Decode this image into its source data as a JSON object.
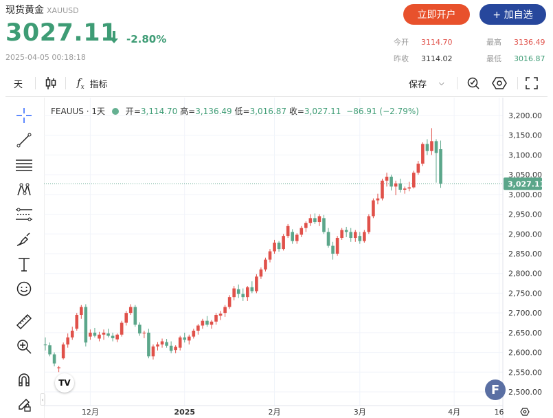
{
  "header": {
    "title": "现货黄金",
    "symbol": "XAUUSD",
    "price": "3027.11",
    "change": "-2.80%",
    "timestamp": "2025-04-05 00:18:18",
    "open_account_label": "立即开户",
    "add_watchlist_label": "+ 加自选"
  },
  "stats": {
    "open_label": "今开",
    "open": "3114.70",
    "high_label": "最高",
    "high": "3136.49",
    "prev_label": "昨收",
    "prev": "3114.02",
    "low_label": "最低",
    "low": "3016.87"
  },
  "toolbar": {
    "interval": "天",
    "indicators": "指标",
    "save": "保存"
  },
  "legend": {
    "symbol": "FEAUUS · 1天",
    "open_label": "开",
    "open": "3,114.70",
    "high_label": "高",
    "high": "3,136.49",
    "low_label": "低",
    "low": "3,016.87",
    "close_label": "收",
    "close": "3,027.11",
    "change": "−86.91 (−2.79%)"
  },
  "colors": {
    "up": "#e0514a",
    "down": "#5ba68a",
    "accent_orange": "#e8512c",
    "accent_blue": "#27479c"
  },
  "icons": [
    "crosshair-icon",
    "trendline-icon",
    "fib-icon",
    "pattern-icon",
    "forecast-icon",
    "brush-icon",
    "text-icon",
    "emoji-icon",
    "ruler-icon",
    "zoom-icon",
    "magnet-icon",
    "lock-pencil-icon",
    "candle-icon",
    "fx-icon",
    "alert-icon",
    "settings-icon",
    "fullscreen-icon"
  ],
  "chart_data": {
    "type": "candlestick",
    "price_axis": [
      "3,200.00",
      "3,150.00",
      "3,100.00",
      "3,050.00",
      "3,000.00",
      "2,950.00",
      "2,900.00",
      "2,850.00",
      "2,800.00",
      "2,750.00",
      "2,700.00",
      "2,650.00",
      "2,600.00",
      "2,550.00",
      "2,500.00"
    ],
    "price_ticks": [
      3200,
      3150,
      3100,
      3050,
      3000,
      2950,
      2900,
      2850,
      2800,
      2750,
      2700,
      2650,
      2600,
      2550,
      2500
    ],
    "ylim": [
      2480,
      3230
    ],
    "time_axis": [
      {
        "label": "12月",
        "index": 10
      },
      {
        "label": "2025",
        "index": 31
      },
      {
        "label": "2月",
        "index": 51
      },
      {
        "label": "3月",
        "index": 70
      },
      {
        "label": "4月",
        "index": 91
      },
      {
        "label": "16",
        "index": 101
      }
    ],
    "last_price_label": "3,027.11",
    "last_price": 3027.11,
    "ohlc": [
      [
        2620,
        2638,
        2605,
        2618
      ],
      [
        2618,
        2625,
        2590,
        2595
      ],
      [
        2595,
        2600,
        2565,
        2572
      ],
      [
        2560,
        2566,
        2550,
        2562
      ],
      [
        2585,
        2625,
        2582,
        2620
      ],
      [
        2620,
        2648,
        2612,
        2638
      ],
      [
        2638,
        2665,
        2632,
        2655
      ],
      [
        2660,
        2700,
        2655,
        2695
      ],
      [
        2695,
        2720,
        2685,
        2715
      ],
      [
        2715,
        2722,
        2615,
        2625
      ],
      [
        2640,
        2658,
        2632,
        2650
      ],
      [
        2650,
        2662,
        2638,
        2642
      ],
      [
        2635,
        2652,
        2628,
        2645
      ],
      [
        2645,
        2658,
        2632,
        2650
      ],
      [
        2648,
        2660,
        2638,
        2642
      ],
      [
        2642,
        2650,
        2628,
        2636
      ],
      [
        2633,
        2648,
        2626,
        2645
      ],
      [
        2645,
        2680,
        2640,
        2675
      ],
      [
        2675,
        2705,
        2668,
        2700
      ],
      [
        2700,
        2722,
        2695,
        2715
      ],
      [
        2715,
        2720,
        2665,
        2670
      ],
      [
        2670,
        2676,
        2642,
        2648
      ],
      [
        2648,
        2655,
        2636,
        2650
      ],
      [
        2650,
        2660,
        2585,
        2590
      ],
      [
        2590,
        2620,
        2582,
        2615
      ],
      [
        2615,
        2626,
        2605,
        2620
      ],
      [
        2620,
        2635,
        2612,
        2628
      ],
      [
        2626,
        2634,
        2612,
        2617
      ],
      [
        2617,
        2628,
        2598,
        2604
      ],
      [
        2606,
        2618,
        2598,
        2614
      ],
      [
        2612,
        2642,
        2605,
        2638
      ],
      [
        2638,
        2650,
        2625,
        2632
      ],
      [
        2630,
        2645,
        2620,
        2640
      ],
      [
        2640,
        2660,
        2635,
        2655
      ],
      [
        2655,
        2672,
        2645,
        2668
      ],
      [
        2668,
        2685,
        2660,
        2680
      ],
      [
        2680,
        2692,
        2665,
        2670
      ],
      [
        2670,
        2682,
        2660,
        2678
      ],
      [
        2678,
        2700,
        2670,
        2695
      ],
      [
        2693,
        2705,
        2682,
        2698
      ],
      [
        2700,
        2720,
        2690,
        2715
      ],
      [
        2715,
        2745,
        2710,
        2740
      ],
      [
        2740,
        2768,
        2732,
        2762
      ],
      [
        2760,
        2772,
        2738,
        2748
      ],
      [
        2748,
        2762,
        2730,
        2740
      ],
      [
        2740,
        2768,
        2730,
        2765
      ],
      [
        2765,
        2780,
        2750,
        2755
      ],
      [
        2755,
        2798,
        2750,
        2792
      ],
      [
        2792,
        2815,
        2786,
        2810
      ],
      [
        2810,
        2840,
        2805,
        2835
      ],
      [
        2835,
        2862,
        2828,
        2856
      ],
      [
        2856,
        2885,
        2850,
        2878
      ],
      [
        2878,
        2882,
        2855,
        2862
      ],
      [
        2862,
        2900,
        2858,
        2895
      ],
      [
        2895,
        2925,
        2890,
        2920
      ],
      [
        2905,
        2912,
        2875,
        2882
      ],
      [
        2882,
        2902,
        2875,
        2898
      ],
      [
        2898,
        2920,
        2892,
        2915
      ],
      [
        2915,
        2932,
        2905,
        2928
      ],
      [
        2928,
        2950,
        2920,
        2940
      ],
      [
        2940,
        2952,
        2925,
        2930
      ],
      [
        2930,
        2950,
        2920,
        2945
      ],
      [
        2940,
        2948,
        2900,
        2905
      ],
      [
        2905,
        2915,
        2865,
        2870
      ],
      [
        2870,
        2880,
        2835,
        2850
      ],
      [
        2850,
        2895,
        2845,
        2890
      ],
      [
        2890,
        2915,
        2885,
        2910
      ],
      [
        2910,
        2918,
        2892,
        2905
      ],
      [
        2905,
        2915,
        2880,
        2890
      ],
      [
        2890,
        2910,
        2880,
        2905
      ],
      [
        2895,
        2905,
        2875,
        2882
      ],
      [
        2882,
        2910,
        2878,
        2905
      ],
      [
        2905,
        2950,
        2900,
        2945
      ],
      [
        2945,
        2990,
        2940,
        2985
      ],
      [
        2985,
        3002,
        2975,
        2990
      ],
      [
        2990,
        3040,
        2985,
        3035
      ],
      [
        3035,
        3055,
        3020,
        3045
      ],
      [
        3045,
        3050,
        3010,
        3020
      ],
      [
        3020,
        3035,
        2998,
        3028
      ],
      [
        3028,
        3040,
        3005,
        3012
      ],
      [
        3012,
        3020,
        3002,
        3015
      ],
      [
        3015,
        3032,
        3008,
        3018
      ],
      [
        3018,
        3060,
        3015,
        3055
      ],
      [
        3055,
        3085,
        3050,
        3078
      ],
      [
        3078,
        3132,
        3072,
        3128
      ],
      [
        3128,
        3140,
        3100,
        3110
      ],
      [
        3110,
        3168,
        3100,
        3135
      ],
      [
        3135,
        3140,
        3030,
        3105
      ],
      [
        3114.7,
        3136.49,
        3016.87,
        3027.11
      ]
    ]
  }
}
